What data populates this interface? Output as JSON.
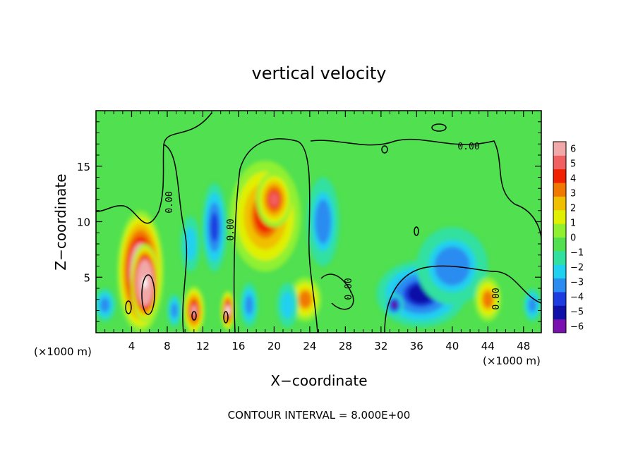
{
  "chart_data": {
    "type": "heatmap",
    "title": "vertical velocity",
    "xlabel": "X−coordinate",
    "ylabel": "Z−coordinate",
    "x_unit_label": "(×1000 m)",
    "footer": "CONTOUR INTERVAL = 8.000E+00",
    "xlim": [
      0,
      50
    ],
    "ylim": [
      0,
      20
    ],
    "x_ticks": [
      "4",
      "8",
      "12",
      "16",
      "20",
      "24",
      "28",
      "32",
      "36",
      "40",
      "44",
      "48"
    ],
    "y_ticks": [
      "5",
      "10",
      "15"
    ],
    "x_tick_values": [
      4,
      8,
      12,
      16,
      20,
      24,
      28,
      32,
      36,
      40,
      44,
      48
    ],
    "y_tick_values": [
      5,
      10,
      15
    ],
    "colorbar": {
      "labels": [
        "6",
        "5",
        "4",
        "3",
        "2",
        "1",
        "0",
        "−1",
        "−2",
        "−3",
        "−4",
        "−5",
        "−6"
      ],
      "vmin": -6,
      "vmax": 6,
      "colors": [
        "#7b10b0",
        "#1010a8",
        "#1c3ce0",
        "#2a8cf0",
        "#20d0f0",
        "#30e0a0",
        "#50e050",
        "#90f030",
        "#e0f000",
        "#f0c000",
        "#f07800",
        "#f02000",
        "#f06060",
        "#f0a8a8"
      ]
    },
    "contour_labels": [
      "0.00",
      "0.00",
      "0.00",
      "0.00",
      "0.00"
    ],
    "features": [
      {
        "x": 5.0,
        "z": 5.5,
        "rx": 2.6,
        "rz": 5.5,
        "value": 9
      },
      {
        "x": 5.5,
        "z": 4.5,
        "rx": 1.6,
        "rz": 3.5,
        "value": 12
      },
      {
        "x": 11.0,
        "z": 2.0,
        "rx": 1.2,
        "rz": 2.2,
        "value": 6
      },
      {
        "x": 14.8,
        "z": 2.0,
        "rx": 0.8,
        "rz": 1.8,
        "value": 7
      },
      {
        "x": 13.3,
        "z": 9.5,
        "rx": 1.4,
        "rz": 4.0,
        "value": -4
      },
      {
        "x": 10.6,
        "z": 8.0,
        "rx": 1.1,
        "rz": 2.5,
        "value": -2
      },
      {
        "x": 19.0,
        "z": 10.5,
        "rx": 4.0,
        "rz": 5.0,
        "value": 4.5
      },
      {
        "x": 20.0,
        "z": 12.0,
        "rx": 2.0,
        "rz": 2.5,
        "value": 5.5
      },
      {
        "x": 25.5,
        "z": 10.0,
        "rx": 1.8,
        "rz": 4.0,
        "value": -2.5
      },
      {
        "x": 36.5,
        "z": 3.5,
        "rx": 5.0,
        "rz": 3.0,
        "value": -4.5
      },
      {
        "x": 40.0,
        "z": 6.0,
        "rx": 4.0,
        "rz": 3.5,
        "value": -2.5
      },
      {
        "x": 33.5,
        "z": 2.5,
        "rx": 1.0,
        "rz": 1.0,
        "value": -6
      },
      {
        "x": 23.5,
        "z": 3.0,
        "rx": 1.8,
        "rz": 2.0,
        "value": 3.5
      },
      {
        "x": 21.5,
        "z": 2.5,
        "rx": 1.2,
        "rz": 2.0,
        "value": -2
      },
      {
        "x": 44.0,
        "z": 3.0,
        "rx": 1.5,
        "rz": 2.0,
        "value": 3.5
      },
      {
        "x": 1.0,
        "z": 2.5,
        "rx": 1.2,
        "rz": 1.5,
        "value": -3
      },
      {
        "x": 49.0,
        "z": 2.5,
        "rx": 1.0,
        "rz": 1.5,
        "value": -3
      },
      {
        "x": 8.8,
        "z": 2.0,
        "rx": 0.8,
        "rz": 1.5,
        "value": -3
      },
      {
        "x": 17.2,
        "z": 2.5,
        "rx": 1.0,
        "rz": 2.0,
        "value": -3
      }
    ]
  }
}
